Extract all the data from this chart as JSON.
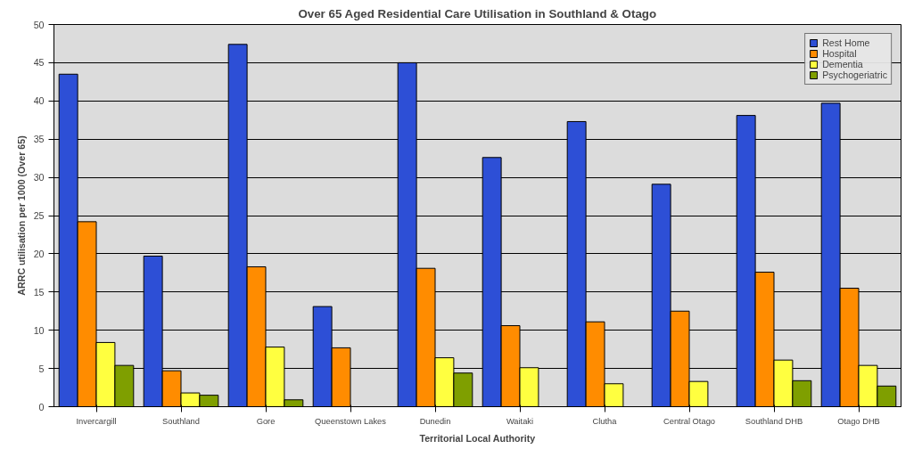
{
  "chart_data": {
    "type": "bar",
    "title": "Over 65 Aged Residential Care Utilisation in Southland & Otago",
    "xlabel": "Territorial Local Authority",
    "ylabel": "ARRC utilisation per 1000 (Over 65)",
    "categories": [
      "Invercargill",
      "Southland",
      "Gore",
      "Queenstown Lakes",
      "Dunedin",
      "Waitaki",
      "Clutha",
      "Central Otago",
      "Southland DHB",
      "Otago DHB"
    ],
    "series": [
      {
        "name": "Rest Home",
        "color": "#2d4fd6",
        "values": [
          43.5,
          19.7,
          47.4,
          13.1,
          45.0,
          32.6,
          37.3,
          29.1,
          38.1,
          39.7
        ]
      },
      {
        "name": "Hospital",
        "color": "#ff8c00",
        "values": [
          24.2,
          4.7,
          18.3,
          7.7,
          18.1,
          10.6,
          11.1,
          12.5,
          17.6,
          15.5
        ]
      },
      {
        "name": "Dementia",
        "color": "#ffff40",
        "values": [
          8.4,
          1.8,
          7.8,
          null,
          6.4,
          5.1,
          3.0,
          3.3,
          6.1,
          5.4
        ]
      },
      {
        "name": "Psychogeriatric",
        "color": "#7f9f00",
        "values": [
          5.4,
          1.5,
          0.9,
          null,
          4.4,
          null,
          null,
          null,
          3.4,
          2.7
        ]
      }
    ],
    "ylim": [
      0,
      50
    ],
    "yticks": [
      0,
      5,
      10,
      15,
      20,
      25,
      30,
      35,
      40,
      45,
      50
    ],
    "grid": "y",
    "legend": "top right"
  }
}
